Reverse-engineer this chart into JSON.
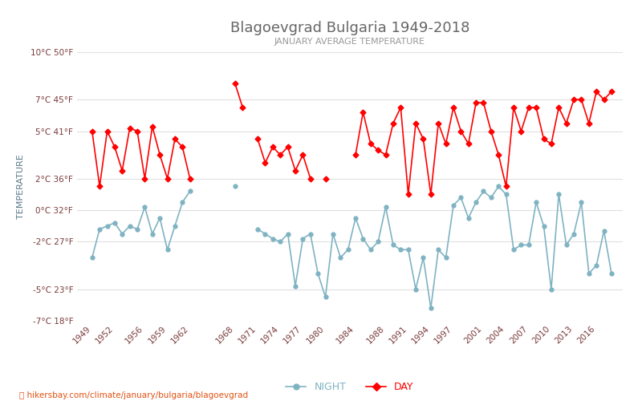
{
  "title": "Blagoevgrad Bulgaria 1949-2018",
  "subtitle": "JANUARY AVERAGE TEMPERATURE",
  "ylabel": "TEMPERATURE",
  "xlabel_url": "hikersbay.com/climate/january/bulgaria/blagoevgrad",
  "legend_night": "NIGHT",
  "legend_day": "DAY",
  "night_color": "#7fb3c2",
  "day_color": "#ff0000",
  "bg_color": "#ffffff",
  "grid_color": "#e0e0e0",
  "title_color": "#666666",
  "subtitle_color": "#999999",
  "ylabel_color": "#5a7a8a",
  "tick_color": "#7a3a3a",
  "ylim_c": [
    -7,
    10
  ],
  "yticks_c": [
    -7,
    -5,
    -2,
    0,
    2,
    5,
    7,
    10
  ],
  "yticks_f": [
    18,
    23,
    27,
    32,
    36,
    41,
    45,
    50
  ],
  "xtick_years": [
    1949,
    1952,
    1956,
    1959,
    1962,
    1968,
    1971,
    1974,
    1977,
    1980,
    1984,
    1988,
    1991,
    1994,
    1997,
    2001,
    2004,
    2007,
    2010,
    2013,
    2016
  ],
  "years": [
    1949,
    1950,
    1951,
    1952,
    1953,
    1954,
    1955,
    1956,
    1957,
    1958,
    1959,
    1960,
    1961,
    1962,
    1963,
    1964,
    1965,
    1966,
    1967,
    1968,
    1969,
    1970,
    1971,
    1972,
    1973,
    1974,
    1975,
    1976,
    1977,
    1978,
    1979,
    1980,
    1981,
    1982,
    1983,
    1984,
    1985,
    1986,
    1987,
    1988,
    1989,
    1990,
    1991,
    1992,
    1993,
    1994,
    1995,
    1996,
    1997,
    1998,
    1999,
    2000,
    2001,
    2002,
    2003,
    2004,
    2005,
    2006,
    2007,
    2008,
    2009,
    2010,
    2011,
    2012,
    2013,
    2014,
    2015,
    2016,
    2017,
    2018
  ],
  "day_temps": [
    5.0,
    1.5,
    5.0,
    4.0,
    2.5,
    5.2,
    5.0,
    2.0,
    5.3,
    3.5,
    2.0,
    4.5,
    4.0,
    2.0,
    null,
    null,
    null,
    null,
    null,
    8.0,
    6.5,
    null,
    4.5,
    3.0,
    4.0,
    3.5,
    4.0,
    2.5,
    3.5,
    2.0,
    null,
    2.0,
    null,
    null,
    null,
    3.5,
    6.2,
    4.2,
    3.8,
    3.5,
    5.5,
    6.5,
    1.0,
    5.5,
    4.5,
    1.0,
    5.5,
    4.2,
    6.5,
    5.0,
    4.2,
    6.8,
    6.8,
    5.0,
    3.5,
    1.5,
    6.5,
    5.0,
    6.5,
    6.5,
    4.5,
    4.2,
    6.5,
    5.5,
    7.0,
    7.0,
    5.5,
    7.5,
    7.0,
    7.5
  ],
  "night_temps": [
    -3.0,
    -1.2,
    -1.0,
    -0.8,
    -1.5,
    -1.0,
    -1.2,
    0.2,
    -1.5,
    -0.5,
    -2.5,
    -1.0,
    0.5,
    1.2,
    null,
    null,
    null,
    null,
    null,
    1.5,
    null,
    null,
    -1.2,
    -1.5,
    -1.8,
    -2.0,
    -1.5,
    -4.8,
    -1.8,
    -1.5,
    -4.0,
    -5.5,
    -1.5,
    -3.0,
    -2.5,
    -0.5,
    -1.8,
    -2.5,
    -2.0,
    0.2,
    -2.2,
    -2.5,
    -2.5,
    -5.0,
    -3.0,
    -6.2,
    -2.5,
    -3.0,
    0.3,
    0.8,
    -0.5,
    0.5,
    1.2,
    0.8,
    1.5,
    1.0,
    -2.5,
    -2.2,
    -2.2,
    0.5,
    -1.0,
    -5.0,
    1.0,
    -2.2,
    -1.5,
    0.5,
    -4.0,
    -3.5,
    -1.3,
    -4.0
  ]
}
